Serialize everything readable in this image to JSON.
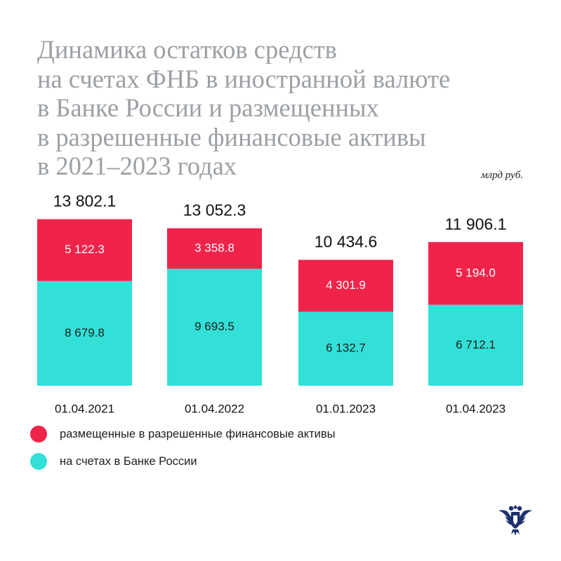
{
  "title_lines": [
    "Динамика остатков средств",
    "на счетах ФНБ в иностранной валюте",
    "в Банке России и размещенных",
    "в разрешенные финансовые активы",
    "в 2021–2023 годах"
  ],
  "units": "млрд руб.",
  "colors": {
    "placed": "#f0244a",
    "cbr": "#32e0d7",
    "emblem": "#1d2f6f"
  },
  "chart_data": {
    "type": "bar",
    "stacked": true,
    "categories": [
      "01.04.2021",
      "01.04.2022",
      "01.01.2023",
      "01.04.2023"
    ],
    "totals": [
      13802.1,
      13052.3,
      10434.6,
      11906.1
    ],
    "total_labels": [
      "13 802.1",
      "13 052.3",
      "10 434.6",
      "11 906.1"
    ],
    "series": [
      {
        "name": "на счетах в Банке России",
        "values": [
          8679.8,
          9693.5,
          6132.7,
          6712.1
        ],
        "labels": [
          "8 679.8",
          "9 693.5",
          "6 132.7",
          "6 712.1"
        ]
      },
      {
        "name": "размещенные в разрешенные финансовые активы",
        "values": [
          5122.3,
          3358.8,
          4301.9,
          5194.0
        ],
        "labels": [
          "5 122.3",
          "3 358.8",
          "4 301.9",
          "5 194.0"
        ]
      }
    ],
    "legend": [
      {
        "label": "размещенные в разрешенные финансовые активы",
        "color_key": "placed"
      },
      {
        "label": "на счетах в Банке России",
        "color_key": "cbr"
      }
    ],
    "legend_position": "bottom-left",
    "grid": false
  }
}
